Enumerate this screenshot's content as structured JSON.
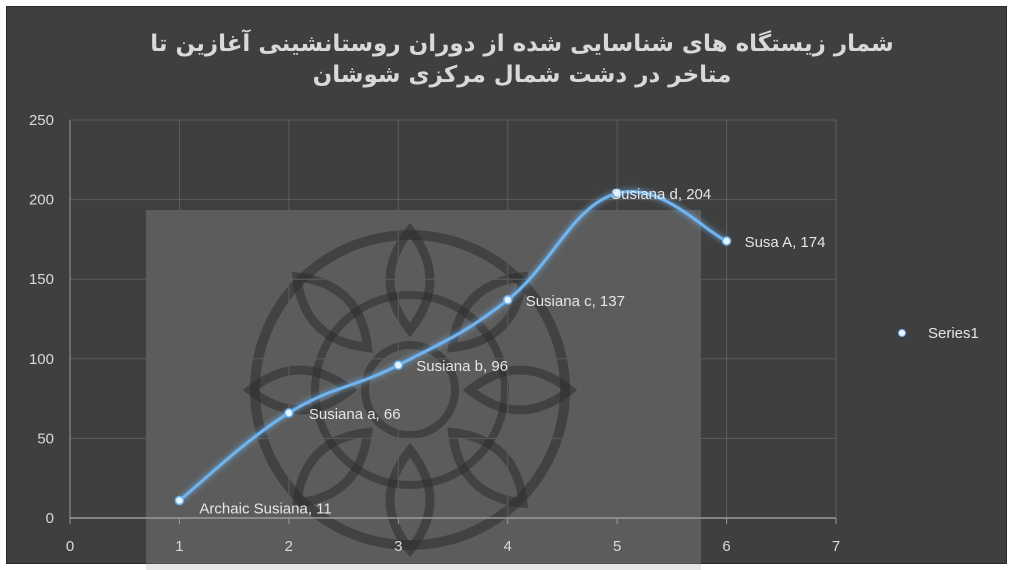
{
  "chart_data": {
    "type": "line",
    "title": "شمار زیستگاه های شناسایی شده از دوران روستانشینی آغازین تا متاخر در دشت شمال مرکزی شوشان",
    "xlim": [
      0,
      7
    ],
    "ylim": [
      0,
      250
    ],
    "x_ticks": [
      0,
      1,
      2,
      3,
      4,
      5,
      6,
      7
    ],
    "y_ticks": [
      0,
      50,
      100,
      150,
      200,
      250
    ],
    "grid": true,
    "smooth": true,
    "legend_position": "right",
    "series": [
      {
        "name": "Series1",
        "color": "#6fb5f0",
        "points": [
          {
            "x": 1,
            "y": 11,
            "label": "Archaic Susiana, 11"
          },
          {
            "x": 2,
            "y": 66,
            "label": "Susiana a, 66"
          },
          {
            "x": 3,
            "y": 96,
            "label": "Susiana b, 96"
          },
          {
            "x": 4,
            "y": 137,
            "label": "Susiana c, 137"
          },
          {
            "x": 5,
            "y": 204,
            "label": "Susiana d, 204"
          },
          {
            "x": 6,
            "y": 174,
            "label": "Susa A, 174"
          }
        ]
      }
    ]
  },
  "colors": {
    "background": "#3f3f3f",
    "gridline": "#5c5c5c",
    "text": "#d9d9d9",
    "series_line": "#6fb5f0"
  }
}
